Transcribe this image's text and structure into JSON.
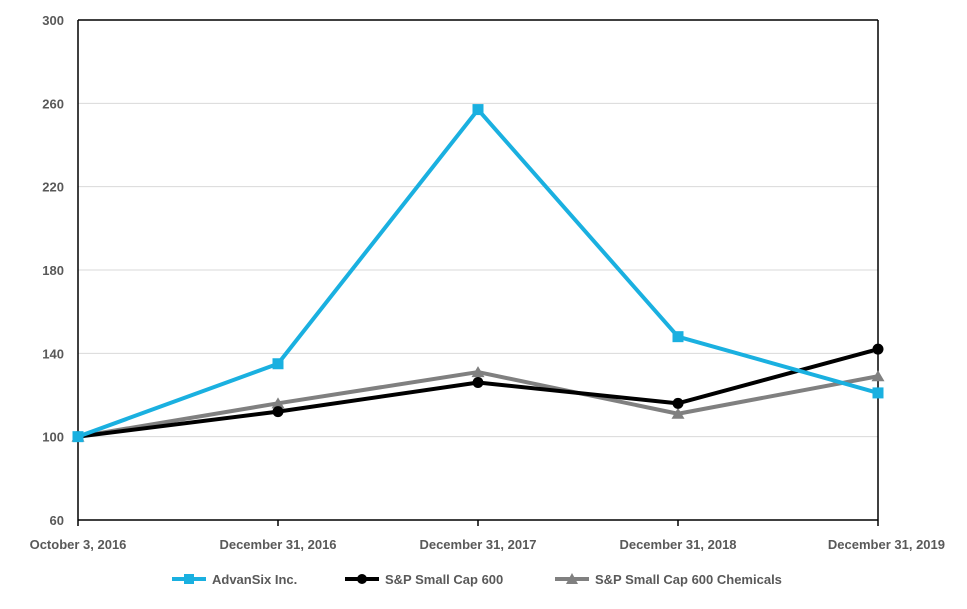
{
  "chart_data": {
    "type": "line",
    "title": "",
    "xlabel": "",
    "ylabel": "",
    "categories": [
      "October 3, 2016",
      "December 31, 2016",
      "December 31, 2017",
      "December 31, 2018",
      "December 31, 2019"
    ],
    "ylim": [
      60,
      300
    ],
    "yticks": [
      "60",
      "100",
      "140",
      "180",
      "220",
      "260",
      "300"
    ],
    "grid": "horizontal",
    "legend_position": "bottom",
    "series": [
      {
        "name": "AdvanSix Inc.",
        "values": [
          100,
          135,
          257,
          148,
          121
        ],
        "color": "#1ab0e0",
        "marker": "square"
      },
      {
        "name": "S&P Small Cap 600",
        "values": [
          100,
          112,
          126,
          116,
          142
        ],
        "color": "#000000",
        "marker": "circle"
      },
      {
        "name": "S&P Small Cap 600 Chemicals",
        "values": [
          100,
          116,
          131,
          111,
          129
        ],
        "color": "#808080",
        "marker": "triangle"
      }
    ]
  }
}
